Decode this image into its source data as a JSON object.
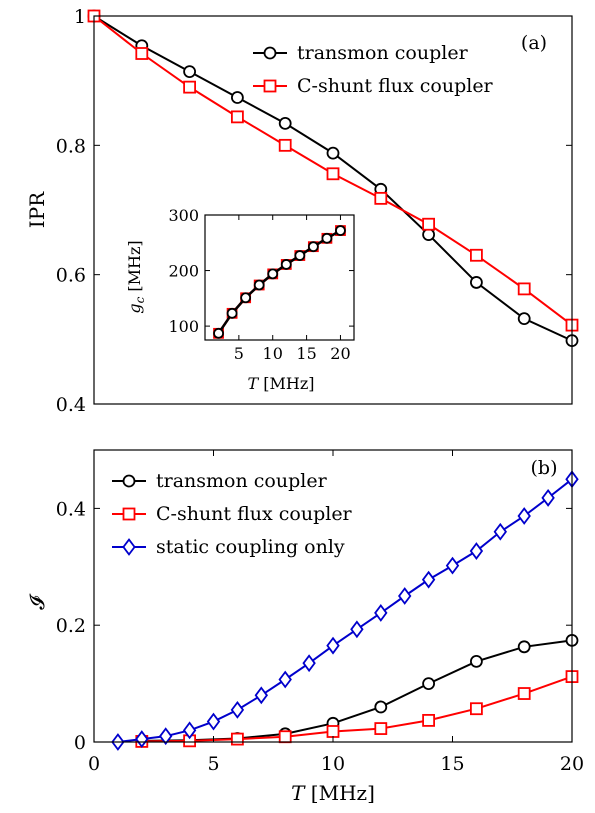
{
  "colors": {
    "transmon": "#000000",
    "cshunt": "#ff0000",
    "static": "#0000cc"
  },
  "icons": {
    "transmon": "circle-marker",
    "cshunt": "square-marker",
    "static": "diamond-marker"
  },
  "chart_data": [
    {
      "id": "a",
      "type": "line",
      "panel_tag": "(a)",
      "title": "",
      "xlabel": "",
      "ylabel": "IPR",
      "xlim": [
        0,
        20
      ],
      "ylim": [
        0.4,
        1.0
      ],
      "xticks": [],
      "yticks": [
        0.4,
        0.6,
        0.8,
        1.0
      ],
      "ytick_labels": [
        "0.4",
        "0.6",
        "0.8",
        "1"
      ],
      "grid": false,
      "legend_position": "top-right",
      "series": [
        {
          "name": "transmon coupler",
          "color_key": "transmon",
          "marker": "circle",
          "x": [
            0,
            2,
            4,
            6,
            8,
            10,
            12,
            14,
            16,
            18,
            20
          ],
          "y": [
            1.0,
            0.954,
            0.914,
            0.874,
            0.834,
            0.788,
            0.732,
            0.662,
            0.588,
            0.532,
            0.498
          ]
        },
        {
          "name": "C-shunt flux coupler",
          "color_key": "cshunt",
          "marker": "square",
          "x": [
            0,
            2,
            4,
            6,
            8,
            10,
            12,
            14,
            16,
            18,
            20
          ],
          "y": [
            1.0,
            0.942,
            0.89,
            0.844,
            0.8,
            0.756,
            0.718,
            0.678,
            0.63,
            0.578,
            0.522
          ]
        }
      ]
    },
    {
      "id": "a-inset",
      "type": "line",
      "title": "",
      "xlabel": "T [MHz]",
      "ylabel": "gc [MHz]",
      "xlim": [
        0,
        22
      ],
      "ylim": [
        75,
        300
      ],
      "xticks": [
        5,
        10,
        15,
        20
      ],
      "yticks": [
        100,
        200,
        300
      ],
      "grid": false,
      "series": [
        {
          "name": "",
          "color_key": "cshunt",
          "marker": "square",
          "x": [
            2,
            4,
            6,
            8,
            10,
            12,
            14,
            16,
            18,
            20
          ],
          "y": [
            87,
            123,
            151,
            174,
            194,
            211,
            227,
            243,
            258,
            272
          ]
        },
        {
          "name": "",
          "color_key": "transmon",
          "marker": "circle",
          "x": [
            2,
            4,
            6,
            8,
            10,
            12,
            14,
            16,
            18,
            20
          ],
          "y": [
            87,
            123,
            151,
            174,
            194,
            211,
            227,
            243,
            258,
            272
          ]
        }
      ]
    },
    {
      "id": "b",
      "type": "line",
      "panel_tag": "(b)",
      "title": "",
      "xlabel": "T [MHz]",
      "ylabel": "𝓘",
      "xlim": [
        0,
        20
      ],
      "ylim": [
        0,
        0.5
      ],
      "xticks": [
        0,
        5,
        10,
        15,
        20
      ],
      "yticks": [
        0,
        0.2,
        0.4
      ],
      "ytick_labels": [
        "0",
        "0.2",
        "0.4"
      ],
      "grid": false,
      "legend_position": "top-left",
      "series": [
        {
          "name": "transmon coupler",
          "color_key": "transmon",
          "marker": "circle",
          "x": [
            2,
            4,
            6,
            8,
            10,
            12,
            14,
            16,
            18,
            20
          ],
          "y": [
            0.002,
            0.003,
            0.006,
            0.014,
            0.032,
            0.06,
            0.1,
            0.138,
            0.163,
            0.174
          ]
        },
        {
          "name": "C-shunt flux coupler",
          "color_key": "cshunt",
          "marker": "square",
          "x": [
            2,
            4,
            6,
            8,
            10,
            12,
            14,
            16,
            18,
            20
          ],
          "y": [
            0.001,
            0.002,
            0.005,
            0.009,
            0.018,
            0.023,
            0.037,
            0.057,
            0.083,
            0.112
          ]
        },
        {
          "name": "static coupling only",
          "color_key": "static",
          "marker": "diamond",
          "x": [
            1,
            2,
            3,
            4,
            5,
            6,
            7,
            8,
            9,
            10,
            11,
            12,
            13,
            14,
            15,
            16,
            17,
            18,
            19,
            20
          ],
          "y": [
            0.0,
            0.005,
            0.01,
            0.02,
            0.035,
            0.055,
            0.08,
            0.107,
            0.135,
            0.165,
            0.193,
            0.221,
            0.25,
            0.278,
            0.302,
            0.327,
            0.36,
            0.387,
            0.418,
            0.45
          ]
        }
      ]
    }
  ]
}
